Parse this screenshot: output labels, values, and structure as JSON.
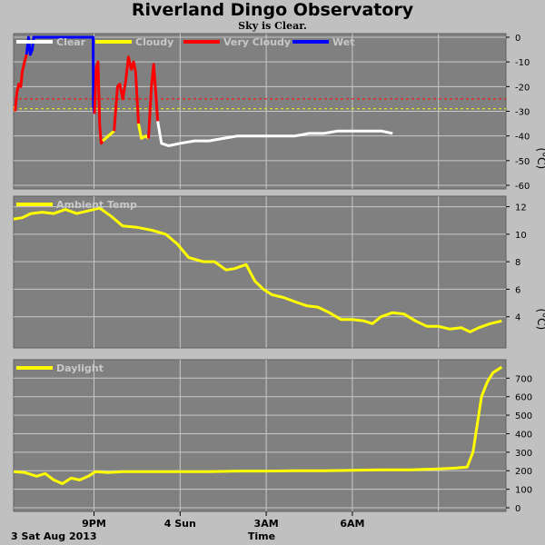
{
  "header": {
    "title": "Riverland Dingo Observatory",
    "subtitle": "Sky is Clear."
  },
  "footer": {
    "date_label": "3 Sat Aug 2013",
    "xlabel": "Time"
  },
  "x_tick_labels": [
    "9PM",
    "4 Sun",
    "3AM",
    "6AM"
  ],
  "colors": {
    "background": "#c0c0c0",
    "plot_bg": "#808080",
    "grid": "#c8c8c8",
    "clear": "#ffffff",
    "cloudy": "#ffff00",
    "very_cloudy": "#ff0000",
    "wet": "#0000ff",
    "threshold_cloudy": "#ffff00",
    "threshold_very_cloudy": "#ff0000"
  },
  "chart_data": [
    {
      "type": "line",
      "panel": "sky",
      "unit": "(°C)",
      "ylim": [
        -60,
        0
      ],
      "yticks": [
        0,
        -10,
        -20,
        -30,
        -40,
        -50,
        -60
      ],
      "grid": true,
      "legend": [
        "Clear",
        "Cloudy",
        "Very Cloudy",
        "Wet"
      ],
      "thresholds": [
        {
          "name": "Very Cloudy",
          "value": -25
        },
        {
          "name": "Cloudy",
          "value": -29
        }
      ],
      "x_range_hours": [
        18.2,
        7.4
      ],
      "segments": [
        {
          "series": "Cloudy",
          "points": [
            [
              18.2,
              -28
            ],
            [
              18.25,
              -30
            ]
          ]
        },
        {
          "series": "Very Cloudy",
          "points": [
            [
              18.25,
              -30
            ],
            [
              18.32,
              -22
            ],
            [
              18.38,
              -19
            ],
            [
              18.45,
              -20
            ],
            [
              18.5,
              -14
            ],
            [
              18.58,
              -10
            ],
            [
              18.65,
              -7
            ]
          ]
        },
        {
          "series": "Wet",
          "points": [
            [
              18.65,
              -7
            ],
            [
              18.72,
              0
            ],
            [
              18.78,
              -7
            ],
            [
              18.85,
              -5
            ],
            [
              18.9,
              0
            ],
            [
              19.0,
              0
            ],
            [
              19.5,
              0
            ],
            [
              20.0,
              0
            ],
            [
              20.5,
              0
            ],
            [
              20.97,
              0
            ],
            [
              20.98,
              -28
            ],
            [
              21.02,
              -31
            ]
          ]
        },
        {
          "series": "Very Cloudy",
          "points": [
            [
              21.02,
              -31
            ],
            [
              21.08,
              -12
            ],
            [
              21.14,
              -10
            ],
            [
              21.2,
              -36
            ],
            [
              21.25,
              -43
            ],
            [
              21.3,
              -42
            ]
          ]
        },
        {
          "series": "Cloudy",
          "points": [
            [
              21.3,
              -42
            ],
            [
              21.5,
              -40
            ],
            [
              21.7,
              -38
            ]
          ]
        },
        {
          "series": "Very Cloudy",
          "points": [
            [
              21.7,
              -38
            ],
            [
              21.82,
              -20
            ],
            [
              21.9,
              -19
            ],
            [
              22.0,
              -25
            ],
            [
              22.1,
              -18
            ],
            [
              22.2,
              -8
            ],
            [
              22.3,
              -13
            ],
            [
              22.38,
              -10
            ],
            [
              22.45,
              -14
            ],
            [
              22.55,
              -35
            ]
          ]
        },
        {
          "series": "Cloudy",
          "points": [
            [
              22.55,
              -35
            ],
            [
              22.65,
              -41
            ],
            [
              22.8,
              -40
            ],
            [
              22.9,
              -41
            ]
          ]
        },
        {
          "series": "Very Cloudy",
          "points": [
            [
              22.9,
              -41
            ],
            [
              23.0,
              -20
            ],
            [
              23.08,
              -11
            ],
            [
              23.15,
              -22
            ],
            [
              23.22,
              -34
            ]
          ]
        },
        {
          "series": "Clear",
          "points": [
            [
              23.22,
              -34
            ],
            [
              23.35,
              -43
            ],
            [
              23.6,
              -44
            ],
            [
              24.0,
              -43
            ],
            [
              24.5,
              -42
            ],
            [
              25.0,
              -42
            ],
            [
              25.5,
              -41
            ],
            [
              26.0,
              -40
            ],
            [
              26.5,
              -40
            ],
            [
              27.0,
              -40
            ],
            [
              27.5,
              -40
            ],
            [
              28.0,
              -40
            ],
            [
              28.5,
              -39
            ],
            [
              29.0,
              -39
            ],
            [
              29.5,
              -38
            ],
            [
              30.0,
              -38
            ],
            [
              30.5,
              -38
            ],
            [
              31.0,
              -38
            ],
            [
              31.4,
              -39
            ]
          ]
        }
      ]
    },
    {
      "type": "line",
      "panel": "ambient",
      "unit": "(°C)",
      "ylim": [
        2,
        12.5
      ],
      "yticks": [
        12,
        10,
        8,
        6,
        4
      ],
      "grid": true,
      "series": [
        {
          "name": "Ambient Temp",
          "color": "#ffff00",
          "points": [
            [
              18.2,
              11.1
            ],
            [
              18.5,
              11.2
            ],
            [
              18.8,
              11.5
            ],
            [
              19.2,
              11.6
            ],
            [
              19.6,
              11.5
            ],
            [
              20.0,
              11.8
            ],
            [
              20.4,
              11.5
            ],
            [
              20.8,
              11.7
            ],
            [
              21.2,
              11.9
            ],
            [
              21.6,
              11.3
            ],
            [
              22.0,
              10.6
            ],
            [
              22.5,
              10.5
            ],
            [
              23.0,
              10.3
            ],
            [
              23.5,
              10.0
            ],
            [
              23.9,
              9.3
            ],
            [
              24.3,
              8.3
            ],
            [
              24.8,
              8.0
            ],
            [
              25.2,
              8.0
            ],
            [
              25.6,
              7.4
            ],
            [
              25.9,
              7.5
            ],
            [
              26.3,
              7.8
            ],
            [
              26.6,
              6.6
            ],
            [
              26.9,
              6.0
            ],
            [
              27.2,
              5.6
            ],
            [
              27.6,
              5.4
            ],
            [
              28.0,
              5.1
            ],
            [
              28.4,
              4.8
            ],
            [
              28.8,
              4.7
            ],
            [
              29.2,
              4.3
            ],
            [
              29.6,
              3.8
            ],
            [
              30.0,
              3.8
            ],
            [
              30.4,
              3.7
            ],
            [
              30.7,
              3.5
            ],
            [
              31.0,
              4.0
            ],
            [
              31.4,
              4.3
            ],
            [
              31.8,
              4.2
            ],
            [
              32.2,
              3.7
            ],
            [
              32.6,
              3.3
            ],
            [
              33.0,
              3.3
            ],
            [
              33.4,
              3.1
            ],
            [
              33.8,
              3.2
            ],
            [
              34.1,
              2.9
            ],
            [
              34.4,
              3.2
            ],
            [
              34.8,
              3.5
            ],
            [
              35.2,
              3.7
            ]
          ]
        }
      ]
    },
    {
      "type": "line",
      "panel": "daylight",
      "unit": "",
      "ylim": [
        0,
        780
      ],
      "yticks": [
        700,
        600,
        500,
        400,
        300,
        200,
        100,
        0
      ],
      "grid": true,
      "series": [
        {
          "name": "Daylight",
          "color": "#ffff00",
          "points": [
            [
              18.2,
              195
            ],
            [
              18.6,
              190
            ],
            [
              19.0,
              170
            ],
            [
              19.3,
              185
            ],
            [
              19.6,
              150
            ],
            [
              19.9,
              130
            ],
            [
              20.2,
              160
            ],
            [
              20.5,
              150
            ],
            [
              20.8,
              170
            ],
            [
              21.05,
              195
            ],
            [
              21.5,
              190
            ],
            [
              22.0,
              195
            ],
            [
              23.0,
              195
            ],
            [
              24.0,
              195
            ],
            [
              25.0,
              195
            ],
            [
              26.0,
              198
            ],
            [
              27.0,
              198
            ],
            [
              28.0,
              200
            ],
            [
              29.0,
              200
            ],
            [
              30.0,
              202
            ],
            [
              31.0,
              205
            ],
            [
              32.0,
              205
            ],
            [
              33.0,
              210
            ],
            [
              33.6,
              215
            ],
            [
              34.0,
              220
            ],
            [
              34.2,
              300
            ],
            [
              34.35,
              450
            ],
            [
              34.5,
              600
            ],
            [
              34.7,
              680
            ],
            [
              34.9,
              730
            ],
            [
              35.2,
              760
            ]
          ]
        }
      ]
    }
  ]
}
